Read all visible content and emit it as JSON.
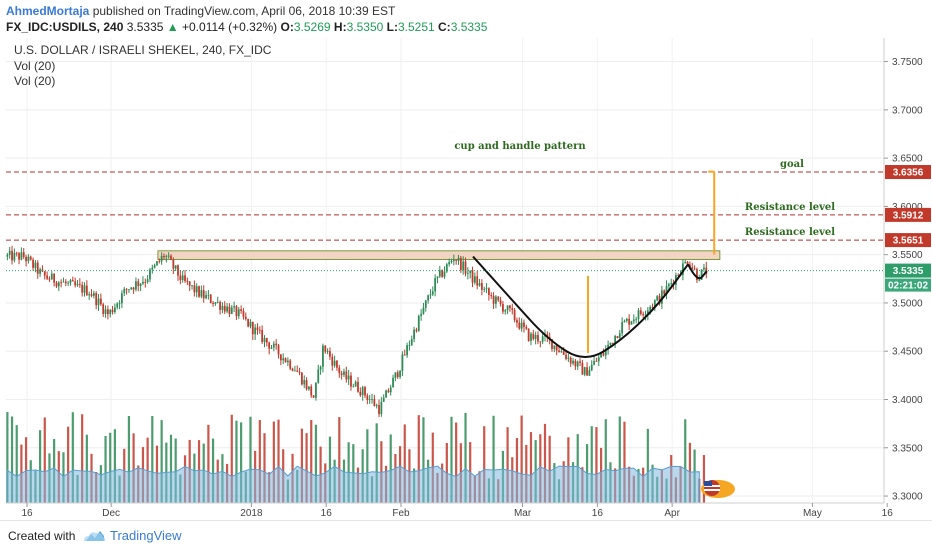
{
  "header": {
    "author": "AhmedMortaja",
    "published_text": "published on TradingView.com, April 06, 2018 10:39 EST",
    "symbol": "FX_IDC:USDILS, 240",
    "last": "3.5335",
    "change": "+0.0114 (+0.32%)",
    "o_label": "O:",
    "o": "3.5269",
    "h_label": "H:",
    "h": "3.5350",
    "l_label": "L:",
    "l": "3.5251",
    "c_label": "C:",
    "c": "3.5335"
  },
  "legend": {
    "title": "U.S. DOLLAR / ISRAELI SHEKEL, 240, FX_IDC",
    "indicators": [
      "Vol (20)",
      "Vol (20)"
    ]
  },
  "countdown": "02:21:02",
  "footer": {
    "created_with": "Created with",
    "brand": "TradingView"
  },
  "colors": {
    "up": "#2e8b57",
    "down": "#c0392b",
    "resistance": "#b03030",
    "annotation": "#2d6a1f",
    "arrow": "#f5a623",
    "volume_ma": "#7fb8e0",
    "price_tag": "#2e9d6a",
    "level_tag": "#c0392b"
  },
  "chart_data": {
    "type": "candlestick",
    "y_ticks": [
      "3.7500",
      "3.7000",
      "3.6500",
      "3.6000",
      "3.5500",
      "3.5000",
      "3.4500",
      "3.4000",
      "3.3500",
      "3.3000"
    ],
    "ylim": [
      3.2928,
      3.7744
    ],
    "x_ticks": [
      "16",
      "Dec",
      "2018",
      "16",
      "Feb",
      "Mar",
      "16",
      "Apr",
      "May",
      "16"
    ],
    "x_tick_positions": [
      0.3,
      9.3,
      24.3,
      32.3,
      40.3,
      53.3,
      61.3,
      69.3,
      84.3,
      92.3
    ],
    "xlim": [
      -2,
      93
    ],
    "anchors": [
      [
        0,
        3.548
      ],
      [
        2,
        3.528
      ],
      [
        5,
        3.518
      ],
      [
        7,
        3.512
      ],
      [
        9,
        3.488
      ],
      [
        11,
        3.515
      ],
      [
        13,
        3.525
      ],
      [
        15,
        3.55
      ],
      [
        17,
        3.522
      ],
      [
        19,
        3.508
      ],
      [
        21,
        3.498
      ],
      [
        23,
        3.488
      ],
      [
        25,
        3.468
      ],
      [
        27,
        3.45
      ],
      [
        29,
        3.432
      ],
      [
        31,
        3.402
      ],
      [
        32,
        3.455
      ],
      [
        34,
        3.425
      ],
      [
        36,
        3.41
      ],
      [
        38,
        3.39
      ],
      [
        40,
        3.43
      ],
      [
        42,
        3.478
      ],
      [
        44,
        3.522
      ],
      [
        46,
        3.548
      ],
      [
        48,
        3.525
      ],
      [
        50,
        3.505
      ],
      [
        52,
        3.49
      ],
      [
        54,
        3.465
      ],
      [
        56,
        3.462
      ],
      [
        58,
        3.445
      ],
      [
        60,
        3.428
      ],
      [
        62,
        3.448
      ],
      [
        64,
        3.478
      ],
      [
        66,
        3.49
      ],
      [
        68,
        3.505
      ],
      [
        70,
        3.532
      ],
      [
        71,
        3.545
      ],
      [
        72,
        3.528
      ],
      [
        73,
        3.5335
      ]
    ],
    "volume_max": 100,
    "levels": [
      {
        "value": 3.6356,
        "label": "3.6356",
        "note": "goal"
      },
      {
        "value": 3.5912,
        "label": "3.5912",
        "note": "Resistance level"
      },
      {
        "value": 3.5651,
        "label": "3.5651",
        "note": "Resistance level"
      }
    ],
    "current_price": {
      "value": 3.5335,
      "label": "3.5335"
    },
    "resistance_zone": {
      "x_from": 14.3,
      "x_to": 74.4,
      "y_from": 3.545,
      "y_to": 3.554
    },
    "pattern_label": "cup and handle pattern",
    "cup_curve": [
      [
        48,
        3.548
      ],
      [
        52,
        3.505
      ],
      [
        56,
        3.462
      ],
      [
        60,
        3.438
      ],
      [
        64,
        3.462
      ],
      [
        68,
        3.5
      ],
      [
        71,
        3.54
      ]
    ],
    "handle_curve": [
      [
        71,
        3.54
      ],
      [
        72,
        3.521
      ],
      [
        73,
        3.533
      ]
    ],
    "arrows": [
      {
        "x": 60.3,
        "from": 3.528,
        "to": 3.448
      },
      {
        "x": 73.8,
        "from": 3.55,
        "to": 3.636
      }
    ]
  }
}
